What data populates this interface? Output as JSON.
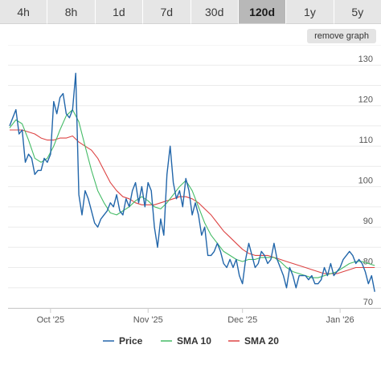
{
  "tabs": [
    {
      "label": "4h"
    },
    {
      "label": "8h"
    },
    {
      "label": "1d"
    },
    {
      "label": "7d"
    },
    {
      "label": "30d"
    },
    {
      "label": "120d",
      "active": true
    },
    {
      "label": "1y"
    },
    {
      "label": "5y"
    }
  ],
  "controls": {
    "remove_graph_label": "remove graph"
  },
  "chart_data": {
    "type": "line",
    "ylim": [
      70,
      135
    ],
    "y_ticks": [
      70,
      80,
      90,
      100,
      110,
      120,
      130
    ],
    "x_ticks": [
      {
        "label": "Oct '25",
        "day": 13
      },
      {
        "label": "Nov '25",
        "day": 44
      },
      {
        "label": "Dec '25",
        "day": 74
      },
      {
        "label": "Jan '26",
        "day": 105
      }
    ],
    "xlim_days": [
      -0.5,
      118
    ],
    "grid": true,
    "legend_position": "bottom",
    "series": [
      {
        "name": "Price",
        "color": "#2266aa",
        "points": [
          [
            0,
            115
          ],
          [
            1,
            117
          ],
          [
            2,
            119
          ],
          [
            3,
            113
          ],
          [
            4,
            114
          ],
          [
            5,
            106
          ],
          [
            6,
            108
          ],
          [
            7,
            107
          ],
          [
            8,
            103
          ],
          [
            9,
            104
          ],
          [
            10,
            104
          ],
          [
            11,
            107
          ],
          [
            12,
            106
          ],
          [
            13,
            108
          ],
          [
            14,
            121
          ],
          [
            15,
            118
          ],
          [
            16,
            122
          ],
          [
            17,
            123
          ],
          [
            18,
            118
          ],
          [
            19,
            117
          ],
          [
            20,
            119
          ],
          [
            21,
            128
          ],
          [
            22,
            98
          ],
          [
            23,
            93
          ],
          [
            24,
            99
          ],
          [
            25,
            97
          ],
          [
            26,
            94
          ],
          [
            27,
            91
          ],
          [
            28,
            90
          ],
          [
            29,
            92
          ],
          [
            30,
            93
          ],
          [
            31,
            94
          ],
          [
            32,
            96
          ],
          [
            33,
            95
          ],
          [
            34,
            98
          ],
          [
            35,
            94
          ],
          [
            36,
            93
          ],
          [
            37,
            97
          ],
          [
            38,
            95
          ],
          [
            39,
            99
          ],
          [
            40,
            101
          ],
          [
            41,
            96
          ],
          [
            42,
            100
          ],
          [
            43,
            95
          ],
          [
            44,
            101
          ],
          [
            45,
            99
          ],
          [
            46,
            90
          ],
          [
            47,
            85
          ],
          [
            48,
            92
          ],
          [
            49,
            88
          ],
          [
            50,
            103
          ],
          [
            51,
            110
          ],
          [
            52,
            101
          ],
          [
            53,
            97
          ],
          [
            54,
            99
          ],
          [
            55,
            95
          ],
          [
            56,
            102
          ],
          [
            57,
            99
          ],
          [
            58,
            93
          ],
          [
            59,
            96
          ],
          [
            60,
            93
          ],
          [
            61,
            88
          ],
          [
            62,
            90
          ],
          [
            63,
            83
          ],
          [
            64,
            83
          ],
          [
            65,
            84
          ],
          [
            66,
            86
          ],
          [
            67,
            84
          ],
          [
            68,
            81
          ],
          [
            69,
            80
          ],
          [
            70,
            82
          ],
          [
            71,
            80
          ],
          [
            72,
            82
          ],
          [
            73,
            78
          ],
          [
            74,
            76
          ],
          [
            75,
            82
          ],
          [
            76,
            86
          ],
          [
            77,
            83
          ],
          [
            78,
            80
          ],
          [
            79,
            81
          ],
          [
            80,
            84
          ],
          [
            81,
            83
          ],
          [
            82,
            81
          ],
          [
            83,
            82
          ],
          [
            84,
            86
          ],
          [
            85,
            82
          ],
          [
            86,
            80
          ],
          [
            87,
            78
          ],
          [
            88,
            75
          ],
          [
            89,
            80
          ],
          [
            90,
            78
          ],
          [
            91,
            75
          ],
          [
            92,
            78
          ],
          [
            93,
            78
          ],
          [
            94,
            78
          ],
          [
            95,
            77
          ],
          [
            96,
            78
          ],
          [
            97,
            76
          ],
          [
            98,
            76
          ],
          [
            99,
            77
          ],
          [
            100,
            80
          ],
          [
            101,
            78
          ],
          [
            102,
            81
          ],
          [
            103,
            78
          ],
          [
            104,
            79
          ],
          [
            105,
            80
          ],
          [
            106,
            82
          ],
          [
            107,
            83
          ],
          [
            108,
            84
          ],
          [
            109,
            83
          ],
          [
            110,
            81
          ],
          [
            111,
            82
          ],
          [
            112,
            81
          ],
          [
            113,
            79
          ],
          [
            114,
            76
          ],
          [
            115,
            78
          ],
          [
            116,
            74
          ]
        ]
      },
      {
        "name": "SMA 10",
        "color": "#44bb66",
        "points": [
          [
            0,
            114.5
          ],
          [
            2,
            116.5
          ],
          [
            4,
            115.5
          ],
          [
            6,
            111.5
          ],
          [
            8,
            107
          ],
          [
            10,
            106
          ],
          [
            12,
            107
          ],
          [
            14,
            110
          ],
          [
            16,
            114
          ],
          [
            18,
            117.5
          ],
          [
            20,
            119
          ],
          [
            22,
            116
          ],
          [
            24,
            110
          ],
          [
            26,
            104
          ],
          [
            28,
            99
          ],
          [
            30,
            96
          ],
          [
            32,
            93.5
          ],
          [
            34,
            93
          ],
          [
            36,
            94
          ],
          [
            38,
            95
          ],
          [
            40,
            96.5
          ],
          [
            42,
            97.5
          ],
          [
            44,
            96.5
          ],
          [
            46,
            95
          ],
          [
            48,
            94.5
          ],
          [
            50,
            96
          ],
          [
            52,
            98
          ],
          [
            54,
            100
          ],
          [
            56,
            101.5
          ],
          [
            58,
            99
          ],
          [
            60,
            95
          ],
          [
            62,
            91
          ],
          [
            64,
            88
          ],
          [
            66,
            86
          ],
          [
            68,
            84
          ],
          [
            70,
            83
          ],
          [
            72,
            82
          ],
          [
            74,
            81.5
          ],
          [
            76,
            82
          ],
          [
            78,
            82
          ],
          [
            80,
            82.5
          ],
          [
            82,
            82.5
          ],
          [
            84,
            82.5
          ],
          [
            86,
            81.5
          ],
          [
            88,
            80
          ],
          [
            90,
            79
          ],
          [
            92,
            78.5
          ],
          [
            94,
            78
          ],
          [
            96,
            77.5
          ],
          [
            98,
            77.5
          ],
          [
            100,
            78
          ],
          [
            102,
            78.5
          ],
          [
            104,
            79
          ],
          [
            106,
            80
          ],
          [
            108,
            81
          ],
          [
            110,
            81.5
          ],
          [
            112,
            81.5
          ],
          [
            114,
            81
          ],
          [
            116,
            80.5
          ]
        ]
      },
      {
        "name": "SMA 20",
        "color": "#dd4444",
        "points": [
          [
            0,
            114
          ],
          [
            2,
            114
          ],
          [
            4,
            114
          ],
          [
            6,
            113.5
          ],
          [
            8,
            113
          ],
          [
            10,
            112
          ],
          [
            12,
            111.5
          ],
          [
            14,
            111.5
          ],
          [
            16,
            112
          ],
          [
            18,
            112
          ],
          [
            20,
            112.5
          ],
          [
            22,
            111
          ],
          [
            24,
            110
          ],
          [
            26,
            109
          ],
          [
            28,
            107
          ],
          [
            30,
            104
          ],
          [
            32,
            101
          ],
          [
            34,
            99
          ],
          [
            36,
            97.5
          ],
          [
            38,
            97
          ],
          [
            40,
            96
          ],
          [
            42,
            95.5
          ],
          [
            44,
            95.5
          ],
          [
            46,
            95.5
          ],
          [
            48,
            96
          ],
          [
            50,
            96.5
          ],
          [
            52,
            97
          ],
          [
            54,
            97.5
          ],
          [
            56,
            97.5
          ],
          [
            58,
            97
          ],
          [
            60,
            96
          ],
          [
            62,
            94.5
          ],
          [
            64,
            93
          ],
          [
            66,
            91
          ],
          [
            68,
            89
          ],
          [
            70,
            87.5
          ],
          [
            72,
            86
          ],
          [
            74,
            84.5
          ],
          [
            76,
            83.5
          ],
          [
            78,
            83
          ],
          [
            80,
            83
          ],
          [
            82,
            83
          ],
          [
            84,
            82.5
          ],
          [
            86,
            82
          ],
          [
            88,
            81.5
          ],
          [
            90,
            81
          ],
          [
            92,
            80.5
          ],
          [
            94,
            80
          ],
          [
            96,
            79.5
          ],
          [
            98,
            79
          ],
          [
            100,
            78.5
          ],
          [
            102,
            78.5
          ],
          [
            104,
            78.5
          ],
          [
            106,
            79
          ],
          [
            108,
            79.5
          ],
          [
            110,
            80
          ],
          [
            112,
            80
          ],
          [
            114,
            80
          ],
          [
            116,
            80
          ]
        ]
      }
    ]
  }
}
